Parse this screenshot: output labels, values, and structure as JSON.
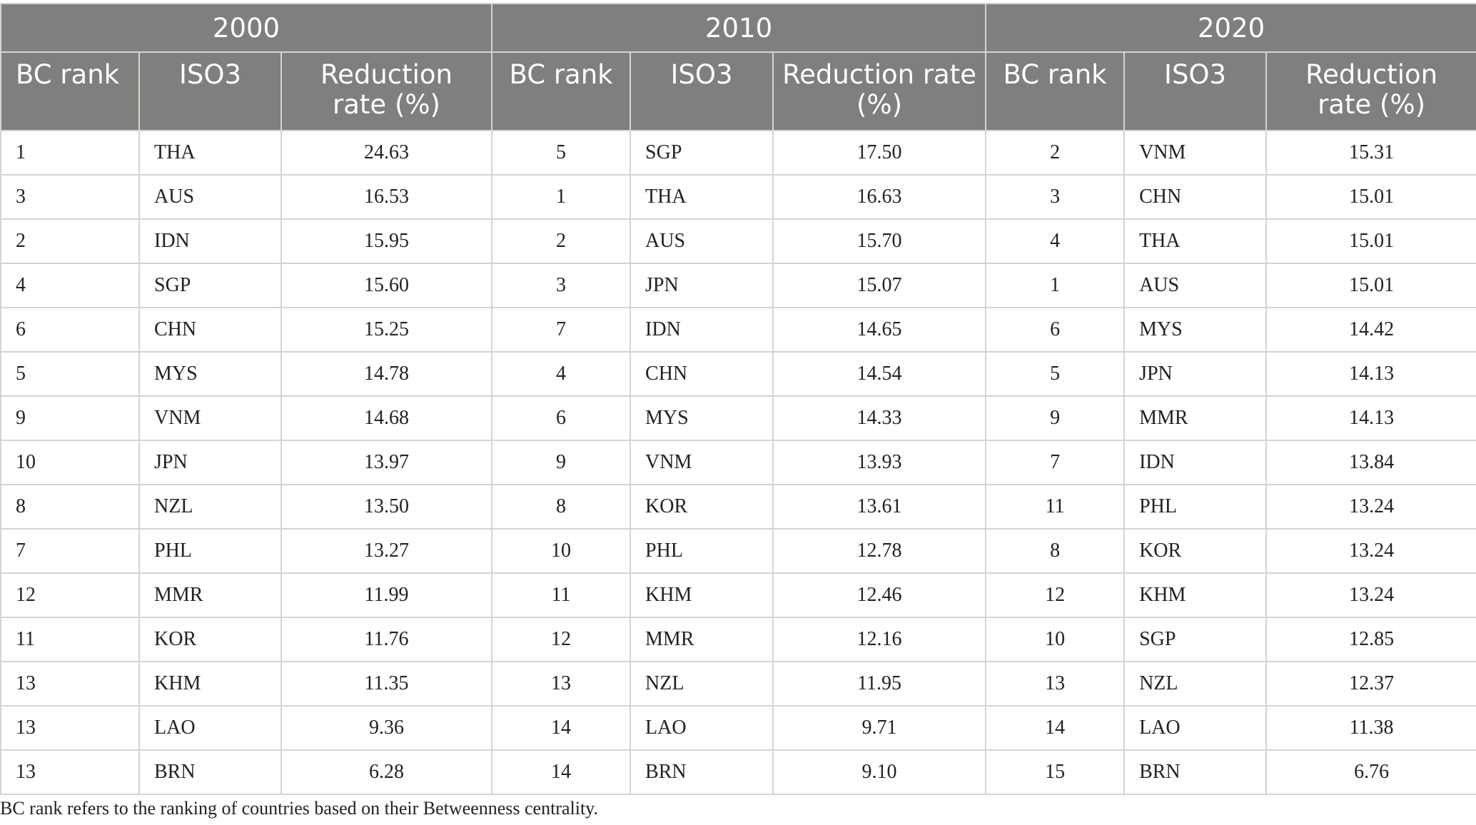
{
  "table": {
    "groups": [
      "2000",
      "2010",
      "2020"
    ],
    "subheaders": {
      "bc_rank": "BC rank",
      "iso3": "ISO3",
      "reduction_rate_line1": "Reduction",
      "reduction_rate_line2": "rate (%)",
      "reduction_rate_mid_line1": "Reduction rate",
      "reduction_rate_mid_line2": "(%)"
    },
    "rows": [
      [
        [
          "1",
          "THA",
          "24.63"
        ],
        [
          "5",
          "SGP",
          "17.50"
        ],
        [
          "2",
          "VNM",
          "15.31"
        ]
      ],
      [
        [
          "3",
          "AUS",
          "16.53"
        ],
        [
          "1",
          "THA",
          "16.63"
        ],
        [
          "3",
          "CHN",
          "15.01"
        ]
      ],
      [
        [
          "2",
          "IDN",
          "15.95"
        ],
        [
          "2",
          "AUS",
          "15.70"
        ],
        [
          "4",
          "THA",
          "15.01"
        ]
      ],
      [
        [
          "4",
          "SGP",
          "15.60"
        ],
        [
          "3",
          "JPN",
          "15.07"
        ],
        [
          "1",
          "AUS",
          "15.01"
        ]
      ],
      [
        [
          "6",
          "CHN",
          "15.25"
        ],
        [
          "7",
          "IDN",
          "14.65"
        ],
        [
          "6",
          "MYS",
          "14.42"
        ]
      ],
      [
        [
          "5",
          "MYS",
          "14.78"
        ],
        [
          "4",
          "CHN",
          "14.54"
        ],
        [
          "5",
          "JPN",
          "14.13"
        ]
      ],
      [
        [
          "9",
          "VNM",
          "14.68"
        ],
        [
          "6",
          "MYS",
          "14.33"
        ],
        [
          "9",
          "MMR",
          "14.13"
        ]
      ],
      [
        [
          "10",
          "JPN",
          "13.97"
        ],
        [
          "9",
          "VNM",
          "13.93"
        ],
        [
          "7",
          "IDN",
          "13.84"
        ]
      ],
      [
        [
          "8",
          "NZL",
          "13.50"
        ],
        [
          "8",
          "KOR",
          "13.61"
        ],
        [
          "11",
          "PHL",
          "13.24"
        ]
      ],
      [
        [
          "7",
          "PHL",
          "13.27"
        ],
        [
          "10",
          "PHL",
          "12.78"
        ],
        [
          "8",
          "KOR",
          "13.24"
        ]
      ],
      [
        [
          "12",
          "MMR",
          "11.99"
        ],
        [
          "11",
          "KHM",
          "12.46"
        ],
        [
          "12",
          "KHM",
          "13.24"
        ]
      ],
      [
        [
          "11",
          "KOR",
          "11.76"
        ],
        [
          "12",
          "MMR",
          "12.16"
        ],
        [
          "10",
          "SGP",
          "12.85"
        ]
      ],
      [
        [
          "13",
          "KHM",
          "11.35"
        ],
        [
          "13",
          "NZL",
          "11.95"
        ],
        [
          "13",
          "NZL",
          "12.37"
        ]
      ],
      [
        [
          "13",
          "LAO",
          "9.36"
        ],
        [
          "14",
          "LAO",
          "9.71"
        ],
        [
          "14",
          "LAO",
          "11.38"
        ]
      ],
      [
        [
          "13",
          "BRN",
          "6.28"
        ],
        [
          "14",
          "BRN",
          "9.10"
        ],
        [
          "15",
          "BRN",
          "6.76"
        ]
      ]
    ]
  },
  "footnote": "BC rank refers to the ranking of countries based on their Betweenness centrality.",
  "colors": {
    "header_bg": "#7f7f7d",
    "header_text": "#ffffff",
    "grid": "#d4d4d4",
    "body_text": "#222222"
  }
}
